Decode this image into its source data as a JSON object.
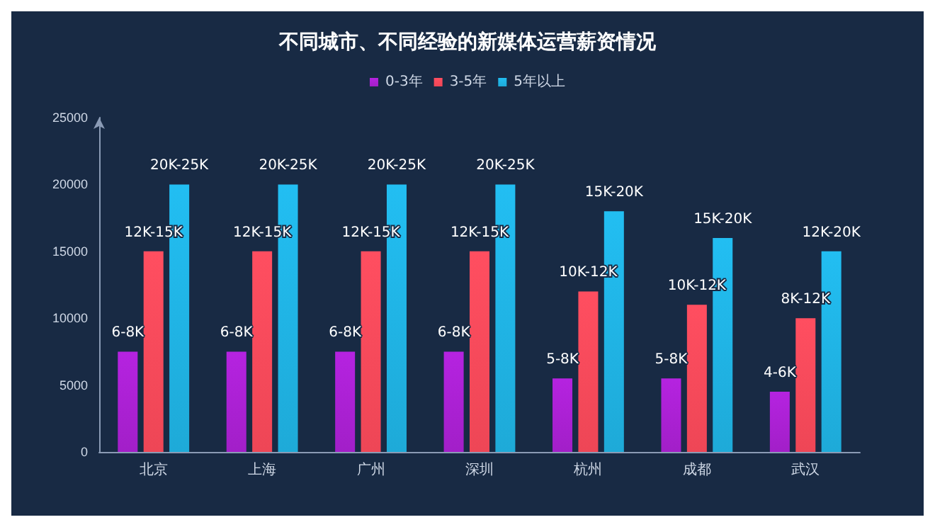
{
  "chart_data": {
    "type": "bar",
    "title": "不同城市、不同经验的新媒体运营薪资情况",
    "categories": [
      "北京",
      "上海",
      "广州",
      "深圳",
      "杭州",
      "成都",
      "武汉"
    ],
    "series": [
      {
        "name": "0-3年",
        "color": "#a21fc8",
        "values": [
          7500,
          7500,
          7500,
          7500,
          5500,
          5500,
          4500
        ]
      },
      {
        "name": "3-5年",
        "color": "#ee4656",
        "values": [
          15000,
          15000,
          15000,
          15000,
          12000,
          11000,
          10000
        ]
      },
      {
        "name": "5年以上",
        "color": "#1eaad8",
        "values": [
          20000,
          20000,
          20000,
          20000,
          18000,
          16000,
          15000
        ]
      }
    ],
    "annotations": [
      "6-8K",
      "6-8K",
      "6-8K",
      "6-8K",
      "5-8K",
      "5-8K",
      "4-6K",
      "12K-15K",
      "12K-15K",
      "12K-15K",
      "12K-15K",
      "10K-12K",
      "10K-12K",
      "8K-12K",
      "20K-25K",
      "20K-25K",
      "20K-25K",
      "20K-25K",
      "15K-20K",
      "15K-20K",
      "12K-20K"
    ],
    "ylim": [
      0,
      25000
    ],
    "yticks": [
      0,
      5000,
      10000,
      15000,
      20000,
      25000
    ],
    "grid": false,
    "legend": "top"
  }
}
